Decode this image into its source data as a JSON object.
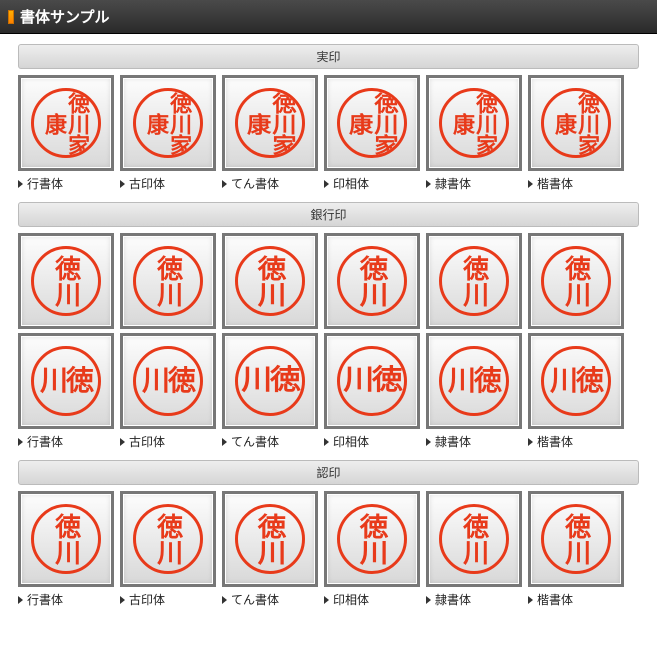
{
  "header": {
    "title": "書体サンプル"
  },
  "accent_color": "#e83a1a",
  "frame_border": "#777777",
  "fontLabels": [
    "行書体",
    "古印体",
    "てん書体",
    "印相体",
    "隷書体",
    "楷書体"
  ],
  "sections": [
    {
      "title": "実印",
      "rows": [
        [
          {
            "text": "徳川家康",
            "cls": "seal-text-4"
          },
          {
            "text": "徳川家康",
            "cls": "seal-text-4"
          },
          {
            "text": "徳川家康",
            "cls": "seal-text-4 seal-stylized"
          },
          {
            "text": "徳川家康",
            "cls": "seal-text-4 seal-stylized"
          },
          {
            "text": "徳川家康",
            "cls": "seal-text-4"
          },
          {
            "text": "徳川家康",
            "cls": "seal-text-4"
          }
        ]
      ],
      "showLabels": true
    },
    {
      "title": "銀行印",
      "rows": [
        [
          {
            "text": "徳川",
            "cls": "seal-text-2v"
          },
          {
            "text": "徳川",
            "cls": "seal-text-2v"
          },
          {
            "text": "徳川",
            "cls": "seal-text-2v seal-stylized"
          },
          {
            "text": "徳川",
            "cls": "seal-text-2v seal-stylized"
          },
          {
            "text": "徳川",
            "cls": "seal-text-2v"
          },
          {
            "text": "徳川",
            "cls": "seal-text-2v"
          }
        ],
        [
          {
            "text": "川徳",
            "cls": "seal-text-2h"
          },
          {
            "text": "川徳",
            "cls": "seal-text-2h"
          },
          {
            "text": "川徳",
            "cls": "seal-text-2h seal-stylized"
          },
          {
            "text": "川徳",
            "cls": "seal-text-2h seal-stylized"
          },
          {
            "text": "川徳",
            "cls": "seal-text-2h"
          },
          {
            "text": "川徳",
            "cls": "seal-text-2h"
          }
        ]
      ],
      "showLabels": true
    },
    {
      "title": "認印",
      "rows": [
        [
          {
            "text": "徳川",
            "cls": "seal-text-2v"
          },
          {
            "text": "徳川",
            "cls": "seal-text-2v"
          },
          {
            "text": "徳川",
            "cls": "seal-text-2v seal-stylized"
          },
          {
            "text": "徳川",
            "cls": "seal-text-2v seal-stylized"
          },
          {
            "text": "徳川",
            "cls": "seal-text-2v"
          },
          {
            "text": "徳川",
            "cls": "seal-text-2v"
          }
        ]
      ],
      "showLabels": true
    }
  ]
}
